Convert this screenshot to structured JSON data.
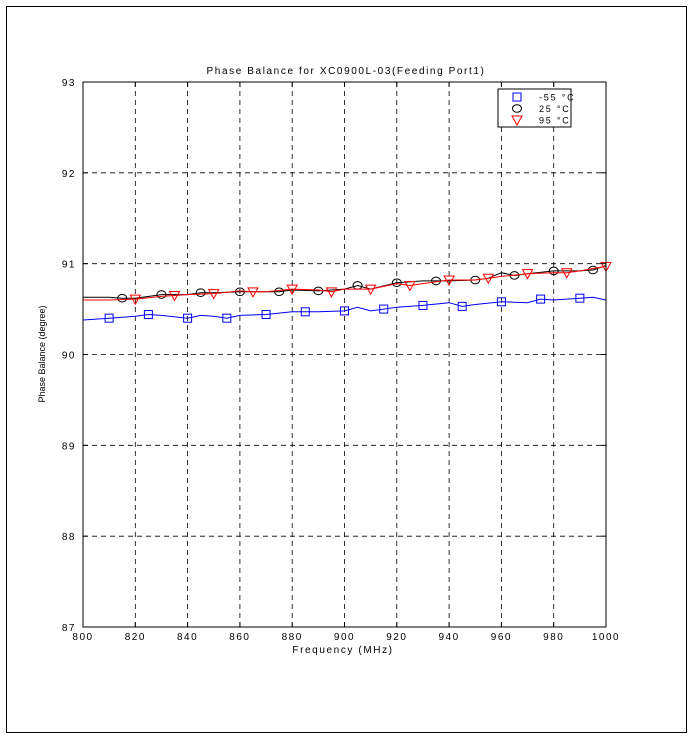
{
  "chart_data": {
    "type": "line",
    "title": "Phase Balance for XC0900L-03(Feeding Port1)",
    "xlabel": "Frequency (MHz)",
    "ylabel": "Phase Balance (degree)",
    "xlim": [
      800,
      1000
    ],
    "ylim": [
      87,
      93
    ],
    "xticks": [
      "800",
      "820",
      "840",
      "860",
      "880",
      "900",
      "920",
      "940",
      "960",
      "980",
      "1000"
    ],
    "yticks": [
      "87",
      "88",
      "89",
      "90",
      "91",
      "92",
      "93"
    ],
    "grid": true,
    "legend_position": "top-right",
    "series": [
      {
        "name": "-55 °C",
        "color": "#0000ff",
        "marker": "square",
        "x": [
          800,
          810,
          820,
          825,
          830,
          840,
          845,
          850,
          855,
          860,
          870,
          880,
          885,
          890,
          900,
          905,
          910,
          920,
          930,
          940,
          945,
          950,
          960,
          970,
          975,
          980,
          990,
          995,
          1000
        ],
        "y": [
          90.38,
          90.4,
          90.42,
          90.44,
          90.43,
          90.4,
          90.43,
          90.42,
          90.4,
          90.43,
          90.44,
          90.47,
          90.47,
          90.47,
          90.48,
          90.52,
          90.48,
          90.52,
          90.54,
          90.57,
          90.53,
          90.55,
          90.58,
          90.57,
          90.61,
          90.6,
          90.62,
          90.63,
          90.6
        ],
        "marker_x": [
          810,
          825,
          840,
          855,
          870,
          885,
          900,
          915,
          930,
          945,
          960,
          975,
          990
        ]
      },
      {
        "name": "25 °C",
        "color": "#000000",
        "marker": "circle",
        "x": [
          800,
          810,
          815,
          820,
          830,
          840,
          845,
          850,
          860,
          870,
          875,
          880,
          890,
          900,
          905,
          910,
          920,
          930,
          935,
          940,
          950,
          955,
          960,
          965,
          970,
          980,
          990,
          995,
          1000
        ],
        "y": [
          90.63,
          90.63,
          90.62,
          90.62,
          90.66,
          90.66,
          90.68,
          90.68,
          90.69,
          90.69,
          90.69,
          90.71,
          90.7,
          90.72,
          90.76,
          90.72,
          90.79,
          90.81,
          90.81,
          90.81,
          90.82,
          90.84,
          90.9,
          90.87,
          90.89,
          90.92,
          90.92,
          90.93,
          90.98
        ],
        "marker_x": [
          815,
          830,
          845,
          860,
          875,
          890,
          905,
          920,
          935,
          950,
          965,
          980,
          995
        ]
      },
      {
        "name": "95 °C",
        "color": "#ff0000",
        "marker": "triangle-down",
        "x": [
          800,
          810,
          820,
          830,
          835,
          840,
          850,
          860,
          865,
          870,
          880,
          890,
          895,
          900,
          910,
          920,
          925,
          930,
          940,
          950,
          955,
          960,
          970,
          980,
          985,
          990,
          1000
        ],
        "y": [
          90.6,
          90.6,
          90.61,
          90.64,
          90.65,
          90.66,
          90.67,
          90.7,
          90.69,
          90.69,
          90.72,
          90.71,
          90.69,
          90.72,
          90.72,
          90.78,
          90.76,
          90.78,
          90.82,
          90.82,
          90.84,
          90.86,
          90.89,
          90.9,
          90.9,
          90.92,
          90.97
        ],
        "marker_x": [
          820,
          835,
          850,
          865,
          880,
          895,
          910,
          925,
          940,
          955,
          970,
          985,
          1000
        ]
      }
    ]
  }
}
